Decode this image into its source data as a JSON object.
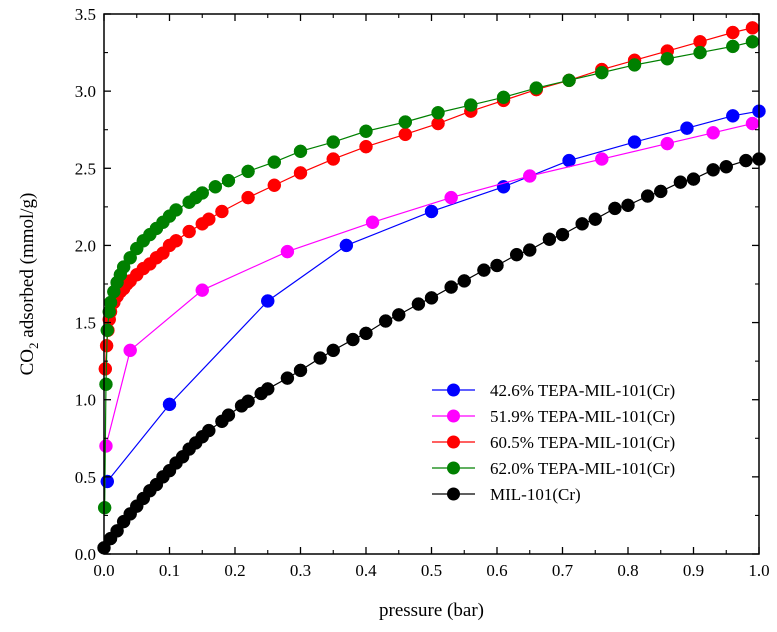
{
  "chart_data": {
    "type": "line",
    "xlabel": "pressure (bar)",
    "ylabel_main": "CO",
    "ylabel_sub": "2",
    "ylabel_rest": " adsorbed (mmol/g)",
    "xlim": [
      0,
      1.0
    ],
    "ylim": [
      0,
      3.5
    ],
    "x_ticks": [
      0.0,
      0.1,
      0.2,
      0.3,
      0.4,
      0.5,
      0.6,
      0.7,
      0.8,
      0.9,
      1.0
    ],
    "y_ticks": [
      0.0,
      0.5,
      1.0,
      1.5,
      2.0,
      2.5,
      3.0,
      3.5
    ],
    "x_tick_labels": [
      "0.0",
      "0.1",
      "0.2",
      "0.3",
      "0.4",
      "0.5",
      "0.6",
      "0.7",
      "0.8",
      "0.9",
      "1.0"
    ],
    "y_tick_labels": [
      "0.0",
      "0.5",
      "1.0",
      "1.5",
      "2.0",
      "2.5",
      "3.0",
      "3.5"
    ],
    "grid": false,
    "legend_position": "bottom-right",
    "series": [
      {
        "name": "42.6% TEPA-MIL-101(Cr)",
        "color": "#0000ff",
        "x": [
          0.005,
          0.1,
          0.25,
          0.37,
          0.5,
          0.61,
          0.71,
          0.81,
          0.89,
          0.96,
          1.0
        ],
        "y": [
          0.47,
          0.97,
          1.64,
          2.0,
          2.22,
          2.38,
          2.55,
          2.67,
          2.76,
          2.84,
          2.87
        ]
      },
      {
        "name": "51.9% TEPA-MIL-101(Cr)",
        "color": "#ff00ff",
        "x": [
          0.003,
          0.04,
          0.15,
          0.28,
          0.41,
          0.53,
          0.65,
          0.76,
          0.86,
          0.93,
          0.99
        ],
        "y": [
          0.7,
          1.32,
          1.71,
          1.96,
          2.15,
          2.31,
          2.45,
          2.56,
          2.66,
          2.73,
          2.79
        ]
      },
      {
        "name": "60.5% TEPA-MIL-101(Cr)",
        "color": "#ff0000",
        "x": [
          0.002,
          0.004,
          0.006,
          0.008,
          0.01,
          0.015,
          0.02,
          0.025,
          0.03,
          0.035,
          0.04,
          0.05,
          0.06,
          0.07,
          0.08,
          0.09,
          0.1,
          0.11,
          0.13,
          0.15,
          0.16,
          0.18,
          0.22,
          0.26,
          0.3,
          0.35,
          0.4,
          0.46,
          0.51,
          0.56,
          0.61,
          0.66,
          0.71,
          0.76,
          0.81,
          0.86,
          0.91,
          0.96,
          0.99
        ],
        "y": [
          1.2,
          1.35,
          1.45,
          1.52,
          1.57,
          1.63,
          1.67,
          1.7,
          1.72,
          1.75,
          1.77,
          1.81,
          1.85,
          1.88,
          1.92,
          1.95,
          2.0,
          2.03,
          2.09,
          2.14,
          2.17,
          2.22,
          2.31,
          2.39,
          2.47,
          2.56,
          2.64,
          2.72,
          2.79,
          2.87,
          2.94,
          3.01,
          3.07,
          3.14,
          3.2,
          3.26,
          3.32,
          3.38,
          3.41
        ]
      },
      {
        "name": "62.0% TEPA-MIL-101(Cr)",
        "color": "#008000",
        "x": [
          0.001,
          0.003,
          0.005,
          0.008,
          0.01,
          0.015,
          0.02,
          0.025,
          0.03,
          0.04,
          0.05,
          0.06,
          0.07,
          0.08,
          0.09,
          0.1,
          0.11,
          0.13,
          0.14,
          0.15,
          0.17,
          0.19,
          0.22,
          0.26,
          0.3,
          0.35,
          0.4,
          0.46,
          0.51,
          0.56,
          0.61,
          0.66,
          0.71,
          0.76,
          0.81,
          0.86,
          0.91,
          0.96,
          0.99
        ],
        "y": [
          0.3,
          1.1,
          1.45,
          1.57,
          1.63,
          1.7,
          1.76,
          1.81,
          1.86,
          1.92,
          1.98,
          2.03,
          2.07,
          2.11,
          2.15,
          2.19,
          2.23,
          2.28,
          2.31,
          2.34,
          2.38,
          2.42,
          2.48,
          2.54,
          2.61,
          2.67,
          2.74,
          2.8,
          2.86,
          2.91,
          2.96,
          3.02,
          3.07,
          3.12,
          3.17,
          3.21,
          3.25,
          3.29,
          3.32
        ]
      },
      {
        "name": "MIL-101(Cr)",
        "color": "#000000",
        "x": [
          0.0,
          0.01,
          0.02,
          0.03,
          0.04,
          0.05,
          0.06,
          0.07,
          0.08,
          0.09,
          0.1,
          0.11,
          0.12,
          0.13,
          0.14,
          0.15,
          0.16,
          0.18,
          0.19,
          0.21,
          0.22,
          0.24,
          0.25,
          0.28,
          0.3,
          0.33,
          0.35,
          0.38,
          0.4,
          0.43,
          0.45,
          0.48,
          0.5,
          0.53,
          0.55,
          0.58,
          0.6,
          0.63,
          0.65,
          0.68,
          0.7,
          0.73,
          0.75,
          0.78,
          0.8,
          0.83,
          0.85,
          0.88,
          0.9,
          0.93,
          0.95,
          0.98,
          1.0
        ],
        "y": [
          0.04,
          0.1,
          0.15,
          0.21,
          0.26,
          0.31,
          0.36,
          0.41,
          0.45,
          0.5,
          0.54,
          0.59,
          0.63,
          0.68,
          0.72,
          0.76,
          0.8,
          0.86,
          0.9,
          0.96,
          0.99,
          1.04,
          1.07,
          1.14,
          1.19,
          1.27,
          1.32,
          1.39,
          1.43,
          1.51,
          1.55,
          1.62,
          1.66,
          1.73,
          1.77,
          1.84,
          1.87,
          1.94,
          1.97,
          2.04,
          2.07,
          2.14,
          2.17,
          2.24,
          2.26,
          2.32,
          2.35,
          2.41,
          2.43,
          2.49,
          2.51,
          2.55,
          2.56
        ]
      }
    ]
  }
}
